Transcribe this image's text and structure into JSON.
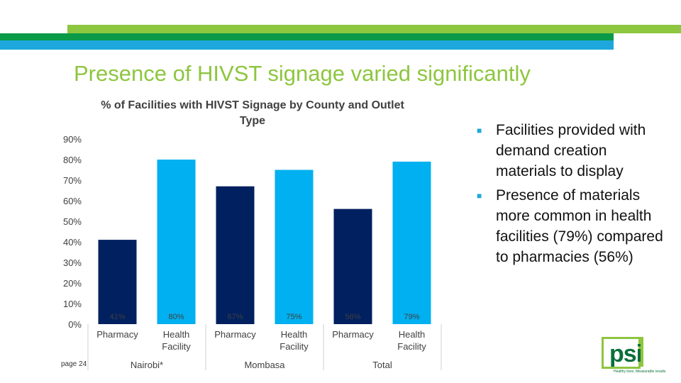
{
  "slide": {
    "title": "Presence of HIVST signage varied significantly",
    "page_label": "page 24"
  },
  "bullets": [
    "Facilities provided with demand creation materials to display",
    "Presence of materials more common in health facilities (79%) compared to pharmacies (56%)"
  ],
  "logo": {
    "text": "psi",
    "tagline": "Healthy lives. Measurable results",
    "green": "#8dc63f",
    "dark_green": "#0a6f3a"
  },
  "colors": {
    "band_light_green": "#8dc63f",
    "band_green": "#0a9a48",
    "band_blue": "#1ea7dc",
    "title_green": "#8dc63f"
  },
  "chart_data": {
    "type": "bar",
    "title": "% of Facilities with HIVST Signage by County and Outlet Type",
    "categories": [
      "Pharmacy",
      "Health Facility",
      "Pharmacy",
      "Health Facility",
      "Pharmacy",
      "Health Facility"
    ],
    "category_lines": [
      [
        "Pharmacy"
      ],
      [
        "Health",
        "Facility"
      ],
      [
        "Pharmacy"
      ],
      [
        "Health",
        "Facility"
      ],
      [
        "Pharmacy"
      ],
      [
        "Health",
        "Facility"
      ]
    ],
    "groups": [
      {
        "label": "Nairobi*",
        "span": [
          0,
          1
        ]
      },
      {
        "label": "Mombasa",
        "span": [
          2,
          3
        ]
      },
      {
        "label": "Total",
        "span": [
          4,
          5
        ]
      }
    ],
    "values": [
      41,
      80,
      67,
      75,
      56,
      79
    ],
    "data_labels": [
      "41%",
      "80%",
      "67%",
      "75%",
      "56%",
      "79%"
    ],
    "bar_colors": [
      "#002060",
      "#00b0f0",
      "#002060",
      "#00b0f0",
      "#002060",
      "#00b0f0"
    ],
    "ylim": [
      0,
      90
    ],
    "yticks": [
      0,
      10,
      20,
      30,
      40,
      50,
      60,
      70,
      80,
      90
    ],
    "ytick_labels": [
      "0%",
      "10%",
      "20%",
      "30%",
      "40%",
      "50%",
      "60%",
      "70%",
      "80%",
      "90%"
    ],
    "grid": false,
    "xlabel": "",
    "ylabel": ""
  }
}
